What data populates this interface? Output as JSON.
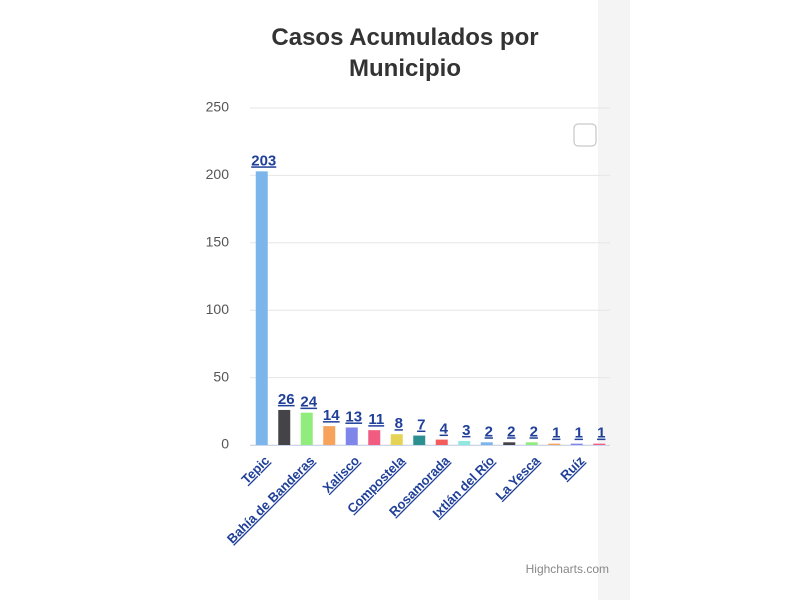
{
  "chart_data": {
    "type": "bar",
    "title": "Casos Acumulados por Municipio",
    "categories": [
      "Tepic",
      null,
      "Bahía de Banderas",
      null,
      "Xalisco",
      null,
      "Compostela",
      null,
      "Rosamorada",
      null,
      "Ixtlán del Río",
      null,
      "La Yesca",
      null,
      "Ruíz",
      null
    ],
    "values": [
      203,
      26,
      24,
      14,
      13,
      11,
      8,
      7,
      4,
      3,
      2,
      2,
      2,
      1,
      1,
      1
    ],
    "colors": [
      "#7cb5ec",
      "#434348",
      "#90ed7d",
      "#f7a35c",
      "#8085e9",
      "#f15c80",
      "#e4d354",
      "#2b908f",
      "#f45b5b",
      "#91e8e1",
      "#7cb5ec",
      "#434348",
      "#90ed7d",
      "#f7a35c",
      "#8085e9",
      "#f15c80"
    ],
    "ylim": [
      0,
      250
    ],
    "yticks": [
      0,
      50,
      100,
      150,
      200,
      250
    ],
    "grid": true,
    "credits": "Highcharts.com"
  }
}
